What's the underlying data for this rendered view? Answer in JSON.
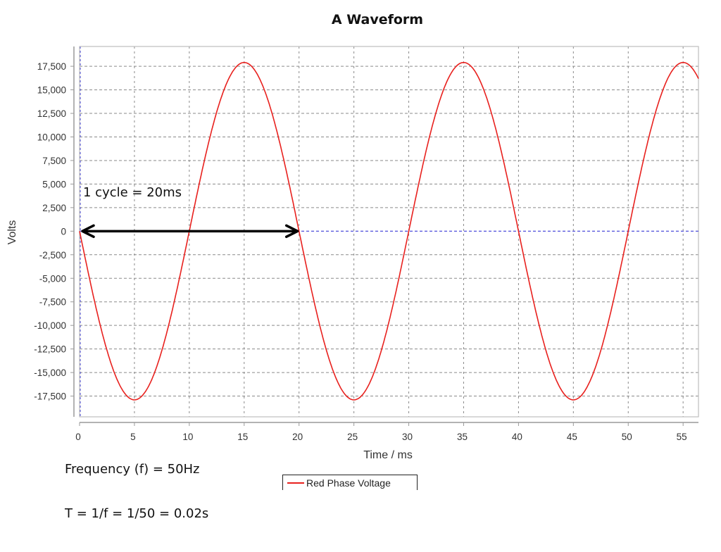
{
  "chart_data": {
    "type": "line",
    "title": "A Waveform",
    "xlabel": "Time / ms",
    "ylabel": "Volts",
    "xlim": [
      0,
      56.4
    ],
    "ylim": [
      -19700,
      19600
    ],
    "x_ticks": [
      0,
      5,
      10,
      15,
      20,
      25,
      30,
      35,
      40,
      45,
      50,
      55
    ],
    "x_tick_labels": [
      "0",
      "5",
      "10",
      "15",
      "20",
      "25",
      "30",
      "35",
      "40",
      "45",
      "50",
      "55"
    ],
    "y_ticks": [
      17500,
      15000,
      12500,
      10000,
      7500,
      5000,
      2500,
      0,
      -2500,
      -5000,
      -7500,
      -10000,
      -12500,
      -15000,
      -17500
    ],
    "y_tick_labels": [
      "17,500",
      "15,000",
      "12,500",
      "10,000",
      "7,500",
      "5,000",
      "2,500",
      "0",
      "-2,500",
      "-5,000",
      "-7,500",
      "-10,000",
      "-12,500",
      "-15,000",
      "-17,500"
    ],
    "grid": true,
    "legend_position": "bottom",
    "series": [
      {
        "name": "Red Phase Voltage",
        "color": "#e8211e",
        "function": "-17900 * sin(2*pi*50*t)",
        "amplitude": 17900,
        "frequency_hz": 50,
        "period_ms": 20,
        "x": [
          0,
          2.5,
          5,
          7.5,
          10,
          12.5,
          15,
          17.5,
          20,
          22.5,
          25,
          27.5,
          30,
          32.5,
          35,
          37.5,
          40,
          42.5,
          45,
          47.5,
          50,
          52.5,
          55,
          56.4
        ],
        "values": [
          0,
          -12657,
          -17900,
          -12657,
          0,
          12657,
          17900,
          12657,
          0,
          -12657,
          -17900,
          -12657,
          0,
          12657,
          17900,
          12657,
          0,
          -12657,
          -17900,
          -12657,
          0,
          12657,
          17900,
          15930
        ]
      }
    ],
    "annotations": [
      {
        "text": "1 cycle = 20ms",
        "type": "double-arrow",
        "x_from": 0,
        "x_to": 20,
        "y": 0
      }
    ]
  },
  "notes": {
    "frequency": "Frequency (f) = 50Hz",
    "period": "T = 1/f = 1/50  = 0.02s"
  },
  "colors": {
    "series": "#e8211e",
    "grid": "#8a8a8a",
    "zero_line": "#3b3bd6",
    "axis": "#9a9a9a",
    "arrow": "#000000"
  }
}
